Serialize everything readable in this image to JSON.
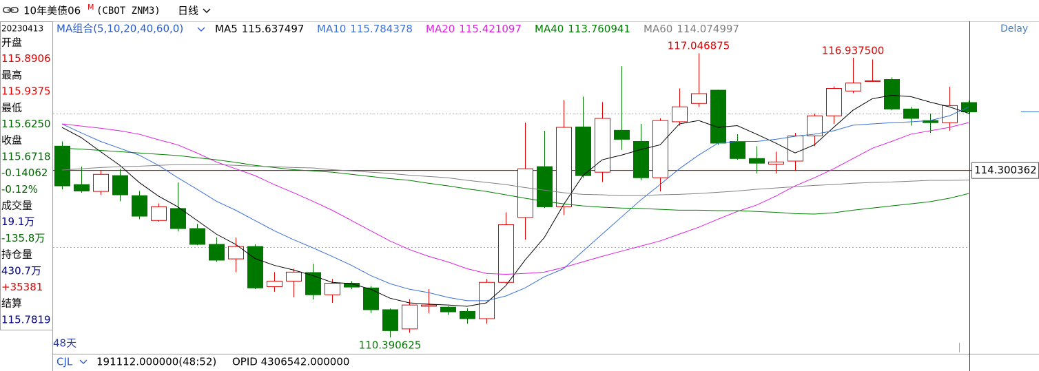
{
  "toolbar": {
    "symbol": "10年美债06",
    "badge": "M",
    "code": "(CBOT ZNM3)",
    "period": "日线"
  },
  "sidebar": {
    "date": "20230413",
    "rows": [
      {
        "text": "开盘",
        "color": "#000000"
      },
      {
        "text": "115.8906",
        "color": "#e00000"
      },
      {
        "text": "最高",
        "color": "#000000"
      },
      {
        "text": "115.9375",
        "color": "#e00000"
      },
      {
        "text": "最低",
        "color": "#000000"
      },
      {
        "text": "115.6250",
        "color": "#006400"
      },
      {
        "text": "收盘",
        "color": "#000000"
      },
      {
        "text": "115.6718",
        "color": "#006400"
      },
      {
        "text": "-0.14062",
        "color": "#006400"
      },
      {
        "text": "-0.12%",
        "color": "#006400"
      },
      {
        "text": "成交量",
        "color": "#000000"
      },
      {
        "text": "19.1万",
        "color": "#000080"
      },
      {
        "text": "-135.8万",
        "color": "#006400"
      },
      {
        "text": "持仓量",
        "color": "#000000"
      },
      {
        "text": "430.7万",
        "color": "#000080"
      },
      {
        "text": "+35381",
        "color": "#e00000"
      },
      {
        "text": "结算",
        "color": "#000000"
      },
      {
        "text": "115.7819",
        "color": "#000080"
      }
    ]
  },
  "chart_data": {
    "type": "candlestick",
    "indicator": "MA组合(5,10,20,40,60,0)",
    "delay": "Delay",
    "span": "48天",
    "up_color": "#e00000",
    "down_color": "#007800",
    "ylim": [
      110.04,
      117.76
    ],
    "price_line": 114.300362,
    "open": [
      114.87,
      113.97,
      113.81,
      114.18,
      113.71,
      113.13,
      113.41,
      112.94,
      112.57,
      112.23,
      112.52,
      111.58,
      111.71,
      111.91,
      111.39,
      111.66,
      111.55,
      111.04,
      110.59,
      111.12,
      111.1,
      111.0,
      110.83,
      111.68,
      113.2,
      114.39,
      113.45,
      115.32,
      114.26,
      115.24,
      114.98,
      114.13,
      115.44,
      115.87,
      116.18,
      114.98,
      114.58,
      114.45,
      114.52,
      115.11,
      115.58,
      116.16,
      116.39,
      116.43,
      115.74,
      115.47,
      115.42,
      115.890625
    ],
    "high": [
      114.98,
      114.39,
      114.31,
      114.34,
      113.82,
      113.53,
      114.02,
      113.05,
      112.73,
      112.73,
      112.57,
      111.92,
      112.0,
      112.12,
      111.76,
      111.71,
      111.6,
      111.07,
      111.28,
      111.52,
      111.12,
      111.07,
      111.76,
      113.32,
      115.42,
      115.23,
      115.95,
      116.03,
      115.9,
      116.74,
      115.39,
      115.52,
      116.22,
      117.046875,
      116.19,
      115.15,
      114.87,
      114.74,
      115.18,
      115.63,
      116.27,
      116.9375,
      116.9,
      116.48,
      115.79,
      115.63,
      116.26,
      115.9375
    ],
    "low": [
      113.86,
      113.78,
      113.73,
      113.58,
      113.16,
      113.1,
      112.87,
      112.55,
      112.16,
      111.92,
      111.52,
      111.46,
      111.33,
      111.28,
      111.2,
      111.52,
      110.96,
      110.390625,
      110.5,
      110.96,
      110.92,
      110.71,
      110.71,
      111.65,
      112.68,
      113.42,
      113.26,
      114.13,
      114.03,
      114.78,
      114.07,
      113.81,
      115.35,
      115.79,
      114.9,
      114.55,
      114.23,
      114.23,
      114.29,
      114.87,
      115.39,
      116.11,
      116.38,
      115.71,
      115.35,
      115.18,
      115.23,
      115.625
    ],
    "close": [
      113.94,
      113.82,
      114.21,
      113.73,
      113.23,
      113.45,
      112.94,
      112.57,
      112.2,
      112.52,
      111.55,
      111.71,
      111.92,
      111.39,
      111.66,
      111.57,
      111.04,
      110.55,
      111.15,
      111.15,
      110.99,
      110.83,
      111.68,
      113.03,
      114.34,
      113.45,
      115.31,
      114.18,
      115.52,
      115.03,
      114.13,
      115.47,
      115.79,
      116.1,
      114.94,
      114.58,
      114.47,
      114.5,
      115.11,
      115.58,
      116.22,
      116.35,
      116.4,
      115.74,
      115.52,
      115.42,
      115.82,
      115.671875
    ],
    "high_value_labels": [
      null,
      null,
      null,
      null,
      null,
      null,
      null,
      null,
      null,
      null,
      null,
      null,
      null,
      null,
      null,
      null,
      null,
      null,
      null,
      null,
      null,
      null,
      null,
      null,
      null,
      null,
      null,
      null,
      null,
      null,
      null,
      null,
      null,
      "117.046875",
      null,
      null,
      null,
      null,
      null,
      null,
      null,
      "116.937500",
      null,
      null,
      null,
      null,
      null,
      null
    ],
    "low_value_labels": [
      null,
      null,
      null,
      null,
      null,
      null,
      null,
      null,
      null,
      null,
      null,
      null,
      null,
      null,
      null,
      null,
      null,
      "110.390625",
      null,
      null,
      null,
      null,
      null,
      null,
      null,
      null,
      null,
      null,
      null,
      null,
      null,
      null,
      null,
      null,
      null,
      null,
      null,
      null,
      null,
      null,
      null,
      null,
      null,
      null,
      null,
      null,
      null,
      null
    ],
    "series": [
      {
        "name": "MA5",
        "color": "#000000",
        "values": [
          115.31,
          115.07,
          114.74,
          114.42,
          114.02,
          113.7,
          113.45,
          113.13,
          112.81,
          112.57,
          112.24,
          112.08,
          111.97,
          111.84,
          111.68,
          111.65,
          111.52,
          111.31,
          111.2,
          111.17,
          111.15,
          111.12,
          111.2,
          111.6,
          112.2,
          112.73,
          113.5,
          114.18,
          114.55,
          114.66,
          114.79,
          114.9,
          115.39,
          115.47,
          115.31,
          115.35,
          115.15,
          114.94,
          114.71,
          114.9,
          115.31,
          115.71,
          115.98,
          116.06,
          116.03,
          115.9,
          115.79,
          115.637497
        ]
      },
      {
        "name": "MA10",
        "color": "#3a6fd8",
        "values": [
          115.39,
          115.18,
          114.98,
          114.82,
          114.66,
          114.42,
          114.13,
          113.86,
          113.58,
          113.37,
          113.13,
          112.89,
          112.68,
          112.49,
          112.29,
          112.08,
          111.84,
          111.65,
          111.52,
          111.44,
          111.33,
          111.25,
          111.25,
          111.36,
          111.55,
          111.81,
          112.0,
          112.41,
          112.81,
          113.21,
          113.61,
          113.97,
          114.34,
          114.66,
          114.94,
          114.98,
          114.98,
          115.03,
          115.1,
          115.15,
          115.23,
          115.36,
          115.39,
          115.42,
          115.44,
          115.47,
          115.58,
          115.784378
        ]
      },
      {
        "name": "MA20",
        "color": "#e020e0",
        "values": [
          115.39,
          115.34,
          115.29,
          115.23,
          115.15,
          115.02,
          114.9,
          114.71,
          114.5,
          114.34,
          114.18,
          113.97,
          113.78,
          113.58,
          113.37,
          113.13,
          112.89,
          112.65,
          112.45,
          112.29,
          112.16,
          112.0,
          111.89,
          111.87,
          111.89,
          111.92,
          112.03,
          112.16,
          112.29,
          112.41,
          112.53,
          112.65,
          112.81,
          112.97,
          113.16,
          113.34,
          113.49,
          113.7,
          113.94,
          114.13,
          114.34,
          114.58,
          114.82,
          114.98,
          115.15,
          115.23,
          115.31,
          115.421097
        ]
      },
      {
        "name": "MA40",
        "color": "#008000",
        "values": [
          114.82,
          114.8,
          114.77,
          114.74,
          114.71,
          114.68,
          114.65,
          114.6,
          114.55,
          114.49,
          114.42,
          114.37,
          114.32,
          114.29,
          114.26,
          114.21,
          114.16,
          114.11,
          114.07,
          114.0,
          113.94,
          113.87,
          113.81,
          113.73,
          113.65,
          113.58,
          113.52,
          113.47,
          113.44,
          113.42,
          113.41,
          113.39,
          113.37,
          113.37,
          113.36,
          113.36,
          113.34,
          113.32,
          113.29,
          113.28,
          113.31,
          113.37,
          113.42,
          113.47,
          113.52,
          113.57,
          113.65,
          113.760941
        ]
      },
      {
        "name": "MA60",
        "color": "#808080",
        "values": [
          114.31,
          114.34,
          114.37,
          114.39,
          114.4,
          114.42,
          114.44,
          114.44,
          114.44,
          114.42,
          114.4,
          114.39,
          114.37,
          114.36,
          114.32,
          114.29,
          114.26,
          114.23,
          114.19,
          114.16,
          114.13,
          114.07,
          114.02,
          113.97,
          113.9,
          113.84,
          113.78,
          113.74,
          113.73,
          113.71,
          113.71,
          113.73,
          113.74,
          113.76,
          113.79,
          113.82,
          113.86,
          113.89,
          113.92,
          113.95,
          113.97,
          114.0,
          114.02,
          114.03,
          114.05,
          114.07,
          114.07,
          114.074997
        ]
      }
    ]
  },
  "indicator_bar": {
    "name": "CJL",
    "value": "191112.000000(48:52)",
    "opid": "OPID 4306542.000000"
  }
}
